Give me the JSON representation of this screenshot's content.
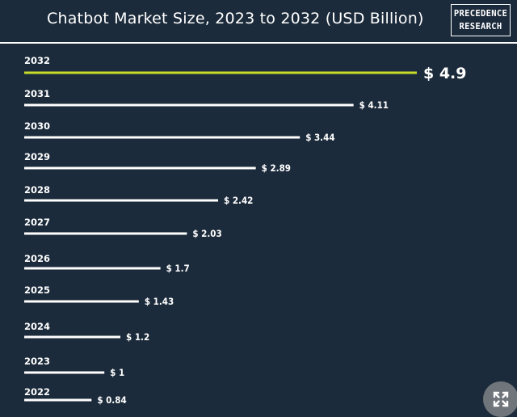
{
  "title": "Chatbot Market Size, 2023 to 2032 (USD Billion)",
  "logo": {
    "line1": "PRECEDENCE",
    "line2": "RESEARCH"
  },
  "colors": {
    "background": "#1c2b3b",
    "bar": "#ffffff",
    "highlight": "#c8dc2a",
    "text": "#ffffff"
  },
  "chart_data": {
    "type": "bar",
    "orientation": "horizontal",
    "title": "Chatbot Market Size, 2023 to 2032 (USD Billion)",
    "xlabel": "",
    "ylabel": "",
    "unit_prefix": "$ ",
    "xlim": [
      0,
      4.9
    ],
    "highlight_category": "2032",
    "categories": [
      "2032",
      "2031",
      "2030",
      "2029",
      "2028",
      "2027",
      "2026",
      "2025",
      "2024",
      "2023",
      "2022"
    ],
    "values": [
      4.9,
      4.11,
      3.44,
      2.89,
      2.42,
      2.03,
      1.7,
      1.43,
      1.2,
      1,
      0.84
    ],
    "value_labels": [
      "$ 4.9",
      "$ 4.11",
      "$ 3.44",
      "$ 2.89",
      "$ 2.42",
      "$ 2.03",
      "$ 1.7",
      "$ 1.43",
      "$ 1.2",
      "$ 1",
      "$ 0.84"
    ]
  },
  "controls": {
    "expand_icon": "expand-arrows-icon"
  }
}
